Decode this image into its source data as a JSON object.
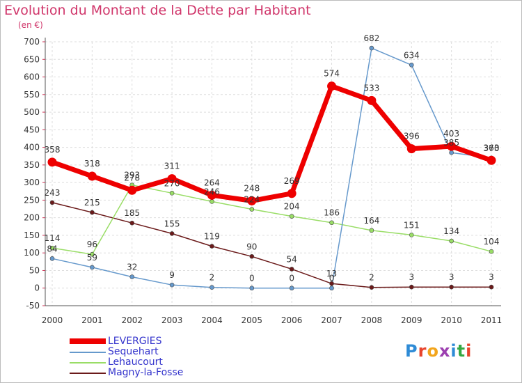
{
  "header": {
    "title": "Evolution du Montant de la Dette par Habitant",
    "unit": "(en €)"
  },
  "logo": {
    "text": "Proxiti",
    "colors": [
      "#2e8bd6",
      "#e8442c",
      "#f2a51c",
      "#9c3fb0",
      "#2e8bd6",
      "#35a843",
      "#e8442c"
    ]
  },
  "chart_data": {
    "type": "line",
    "x": [
      "2000",
      "2001",
      "2002",
      "2003",
      "2004",
      "2005",
      "2006",
      "2007",
      "2008",
      "2009",
      "2010",
      "2011"
    ],
    "ylim": [
      -50,
      700
    ],
    "yticks": [
      -50,
      0,
      50,
      100,
      150,
      200,
      250,
      300,
      350,
      400,
      450,
      500,
      550,
      600,
      650,
      700
    ],
    "grid": true,
    "legend_placement": "bottom-left",
    "series": [
      {
        "name": "Magny-la-Fosse",
        "color": "#6b1a1a",
        "width": 1.5,
        "values": [
          243,
          215,
          185,
          155,
          119,
          90,
          54,
          13,
          2,
          3,
          3,
          3
        ]
      },
      {
        "name": "Lehaucourt",
        "color": "#99dd66",
        "width": 1.5,
        "values": [
          114,
          96,
          293,
          270,
          246,
          224,
          204,
          186,
          164,
          151,
          134,
          104
        ]
      },
      {
        "name": "Sequehart",
        "color": "#6699cc",
        "width": 1.5,
        "values": [
          84,
          59,
          32,
          9,
          2,
          0,
          0,
          0,
          682,
          634,
          385,
          370
        ]
      },
      {
        "name": "LEVERGIES",
        "color": "#ee0000",
        "width": 7,
        "values": [
          358,
          318,
          278,
          311,
          264,
          248,
          269,
          574,
          533,
          396,
          403,
          363
        ]
      }
    ],
    "legend": [
      "LEVERGIES",
      "Sequehart",
      "Lehaucourt",
      "Magny-la-Fosse"
    ]
  }
}
